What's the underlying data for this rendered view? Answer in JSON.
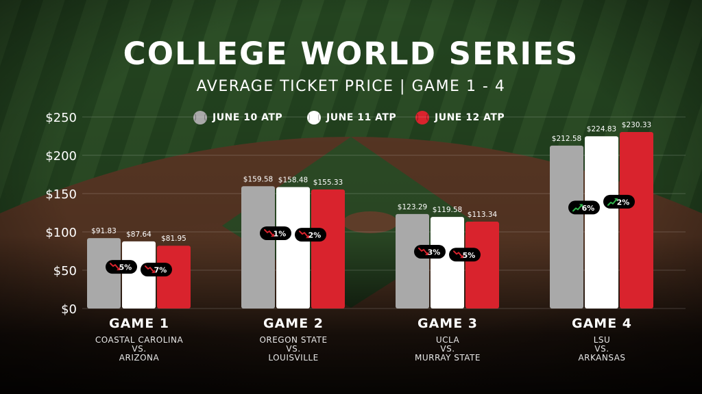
{
  "chart_data": {
    "type": "bar",
    "title": "COLLEGE WORLD SERIES",
    "subtitle": "AVERAGE TICKET PRICE | GAME 1 - 4",
    "categories": [
      "GAME 1",
      "GAME 2",
      "GAME 3",
      "GAME 4"
    ],
    "series": [
      {
        "name": "JUNE 10 ATP",
        "color": "#a9a9a9",
        "values": [
          91.83,
          159.58,
          123.29,
          212.58
        ],
        "value_labels": [
          "$91.83",
          "$159.58",
          "$123.29",
          "$212.58"
        ]
      },
      {
        "name": "JUNE 11 ATP",
        "color": "#ffffff",
        "values": [
          87.64,
          158.48,
          119.58,
          224.83
        ],
        "value_labels": [
          "$87.64",
          "$158.48",
          "$119.58",
          "$224.83"
        ]
      },
      {
        "name": "JUNE 12 ATP",
        "color": "#d9232d",
        "values": [
          81.95,
          155.33,
          113.34,
          230.33
        ],
        "value_labels": [
          "$81.95",
          "$155.33",
          "$113.34",
          "$230.33"
        ]
      }
    ],
    "ylim": [
      0,
      250
    ],
    "yticks": [
      0,
      50,
      100,
      150,
      200,
      250
    ],
    "ytick_labels": [
      "$0",
      "$50",
      "$100",
      "$150",
      "$200",
      "$250"
    ],
    "grid": true,
    "legend_position": "top-center",
    "annotations": [
      {
        "game": 0,
        "series": 1,
        "text": "5%",
        "direction": "down"
      },
      {
        "game": 0,
        "series": 2,
        "text": "7%",
        "direction": "down"
      },
      {
        "game": 1,
        "series": 1,
        "text": "1%",
        "direction": "down"
      },
      {
        "game": 1,
        "series": 2,
        "text": "2%",
        "direction": "down"
      },
      {
        "game": 2,
        "series": 1,
        "text": "3%",
        "direction": "down"
      },
      {
        "game": 2,
        "series": 2,
        "text": "5%",
        "direction": "down"
      },
      {
        "game": 3,
        "series": 1,
        "text": "6%",
        "direction": "up"
      },
      {
        "game": 3,
        "series": 2,
        "text": "2%",
        "direction": "up"
      }
    ]
  },
  "games": [
    {
      "team_a": "COASTAL CAROLINA",
      "vs": "VS.",
      "team_b": "ARIZONA"
    },
    {
      "team_a": "OREGON STATE",
      "vs": "VS.",
      "team_b": "LOUISVILLE"
    },
    {
      "team_a": "UCLA",
      "vs": "VS.",
      "team_b": "MURRAY STATE"
    },
    {
      "team_a": "LSU",
      "vs": "VS.",
      "team_b": "ARKANSAS"
    }
  ],
  "colors": {
    "down_arrow": "#d9232d",
    "up_arrow": "#2fb34a",
    "badge": "#000000"
  }
}
